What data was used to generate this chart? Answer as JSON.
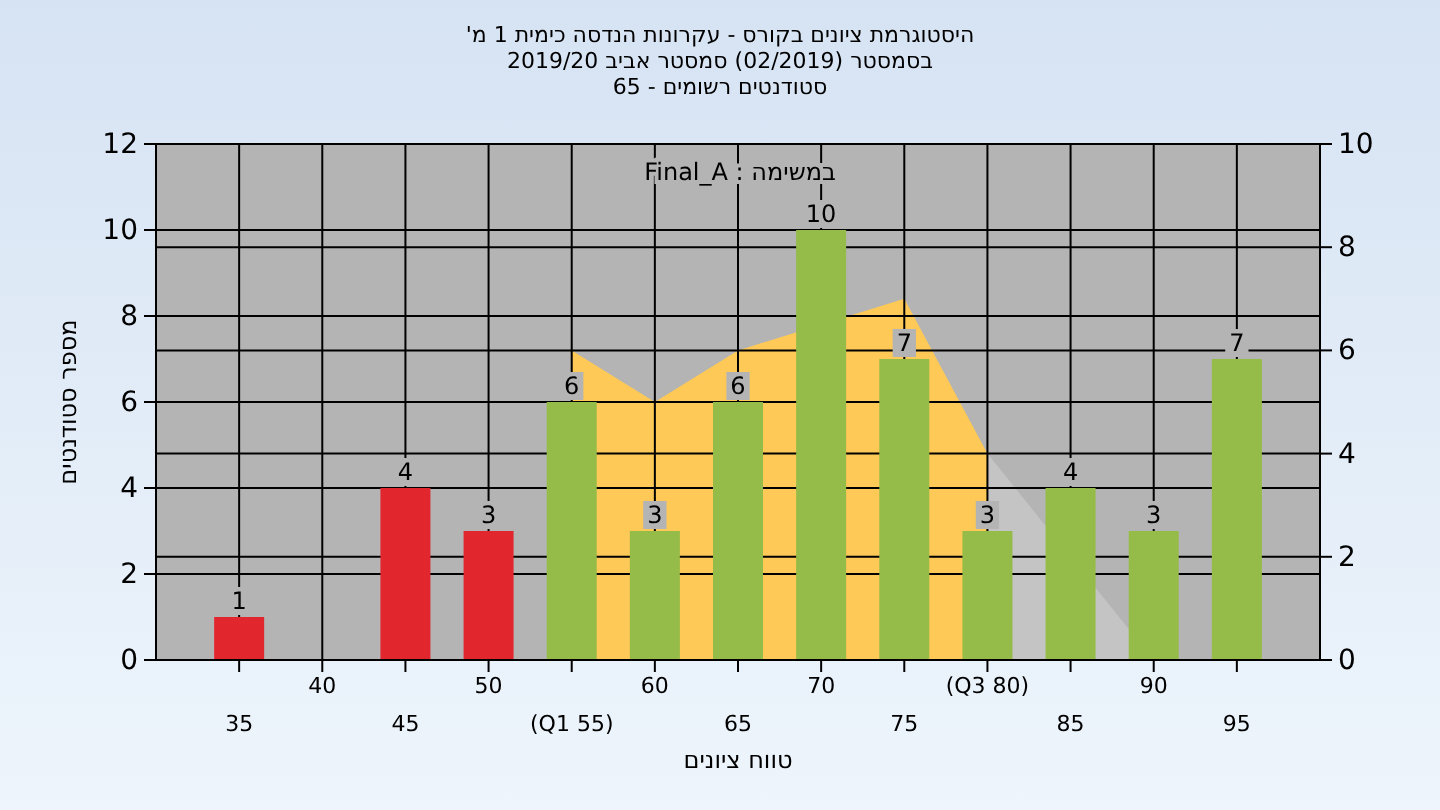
{
  "chart_data": {
    "type": "bar",
    "title": "היסטוגרמת ציונים בקורס - עקרונות הנדסה כימית 1 מ'",
    "subtitle": "בסמסטר  (02/2019)  סמסטר אביב 2019/20\nסטודנטים רשומים - 65",
    "xlabel": "טווח ציונים",
    "ylabel": "מספר סטודנטים",
    "annotations": [
      "במשימה : Final_A"
    ],
    "categories": [
      "35",
      "40",
      "45",
      "50",
      "(Q1 55)",
      "60",
      "65",
      "70",
      "75",
      "(Q3 80)",
      "85",
      "90",
      "95"
    ],
    "series": [
      {
        "type": "area",
        "axis": "y2",
        "color": "#c4c4c4",
        "values": [
          null,
          null,
          null,
          null,
          null,
          null,
          null,
          null,
          null,
          4,
          null,
          0,
          0
        ]
      },
      {
        "type": "area",
        "axis": "y2",
        "color": "#fec956",
        "values": [
          null,
          null,
          null,
          null,
          6,
          5,
          6,
          null,
          7,
          4,
          null,
          null,
          null
        ]
      },
      {
        "type": "bar",
        "colors": [
          "#e2262e",
          "#e2262e",
          "#e2262e",
          "#e2262e",
          "#95bb48",
          "#95bb48",
          "#95bb48",
          "#95bb48",
          "#95bb48",
          "#95bb48",
          "#95bb48",
          "#95bb48",
          "#95bb48"
        ],
        "values": [
          1,
          0,
          4,
          3,
          6,
          3,
          6,
          10,
          7,
          3,
          4,
          3,
          7
        ],
        "value_labels": [
          "1",
          null,
          "4",
          "3",
          "6",
          "3",
          "6",
          "10",
          "7",
          "3",
          "4",
          "3",
          "7"
        ]
      }
    ],
    "ylim": [
      0,
      12
    ],
    "yticks": [
      0,
      2,
      4,
      6,
      8,
      10,
      12
    ],
    "y2lim": [
      0,
      10
    ],
    "y2ticks": [
      0,
      2,
      4,
      6,
      8,
      10
    ],
    "grid": true
  }
}
